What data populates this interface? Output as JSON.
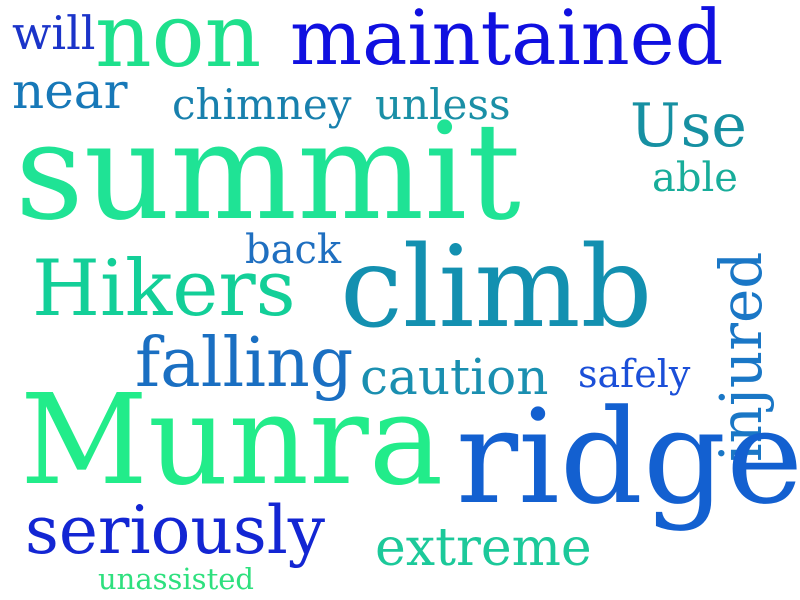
{
  "words": {
    "will": {
      "text": "will",
      "color": "#1b34c9"
    },
    "non": {
      "text": "non",
      "color": "#1ee08c"
    },
    "maintained": {
      "text": "maintained",
      "color": "#1010e0"
    },
    "near": {
      "text": "near",
      "color": "#1778b8"
    },
    "chimney": {
      "text": "chimney",
      "color": "#1880ad"
    },
    "unless": {
      "text": "unless",
      "color": "#1a8fa6"
    },
    "use": {
      "text": "Use",
      "color": "#1690a2"
    },
    "summit": {
      "text": "summit",
      "color": "#1fe395"
    },
    "able": {
      "text": "able",
      "color": "#18ad9a"
    },
    "back": {
      "text": "back",
      "color": "#1f6fc0"
    },
    "hikers": {
      "text": "Hikers",
      "color": "#13cf98"
    },
    "climb": {
      "text": "climb",
      "color": "#1390b0"
    },
    "injured": {
      "text": "injured",
      "color": "#1a77c6"
    },
    "falling": {
      "text": "falling",
      "color": "#1a6fc2"
    },
    "caution": {
      "text": "caution",
      "color": "#1a8fb0"
    },
    "safely": {
      "text": "safely",
      "color": "#1b4fd8"
    },
    "munra": {
      "text": "Munra",
      "color": "#22ec8a"
    },
    "ridge": {
      "text": "ridge",
      "color": "#1360d0"
    },
    "seriously": {
      "text": "seriously",
      "color": "#1326d3"
    },
    "extreme": {
      "text": "extreme",
      "color": "#1cc99a"
    },
    "unassisted": {
      "text": "unassisted",
      "color": "#2ee07e"
    }
  }
}
